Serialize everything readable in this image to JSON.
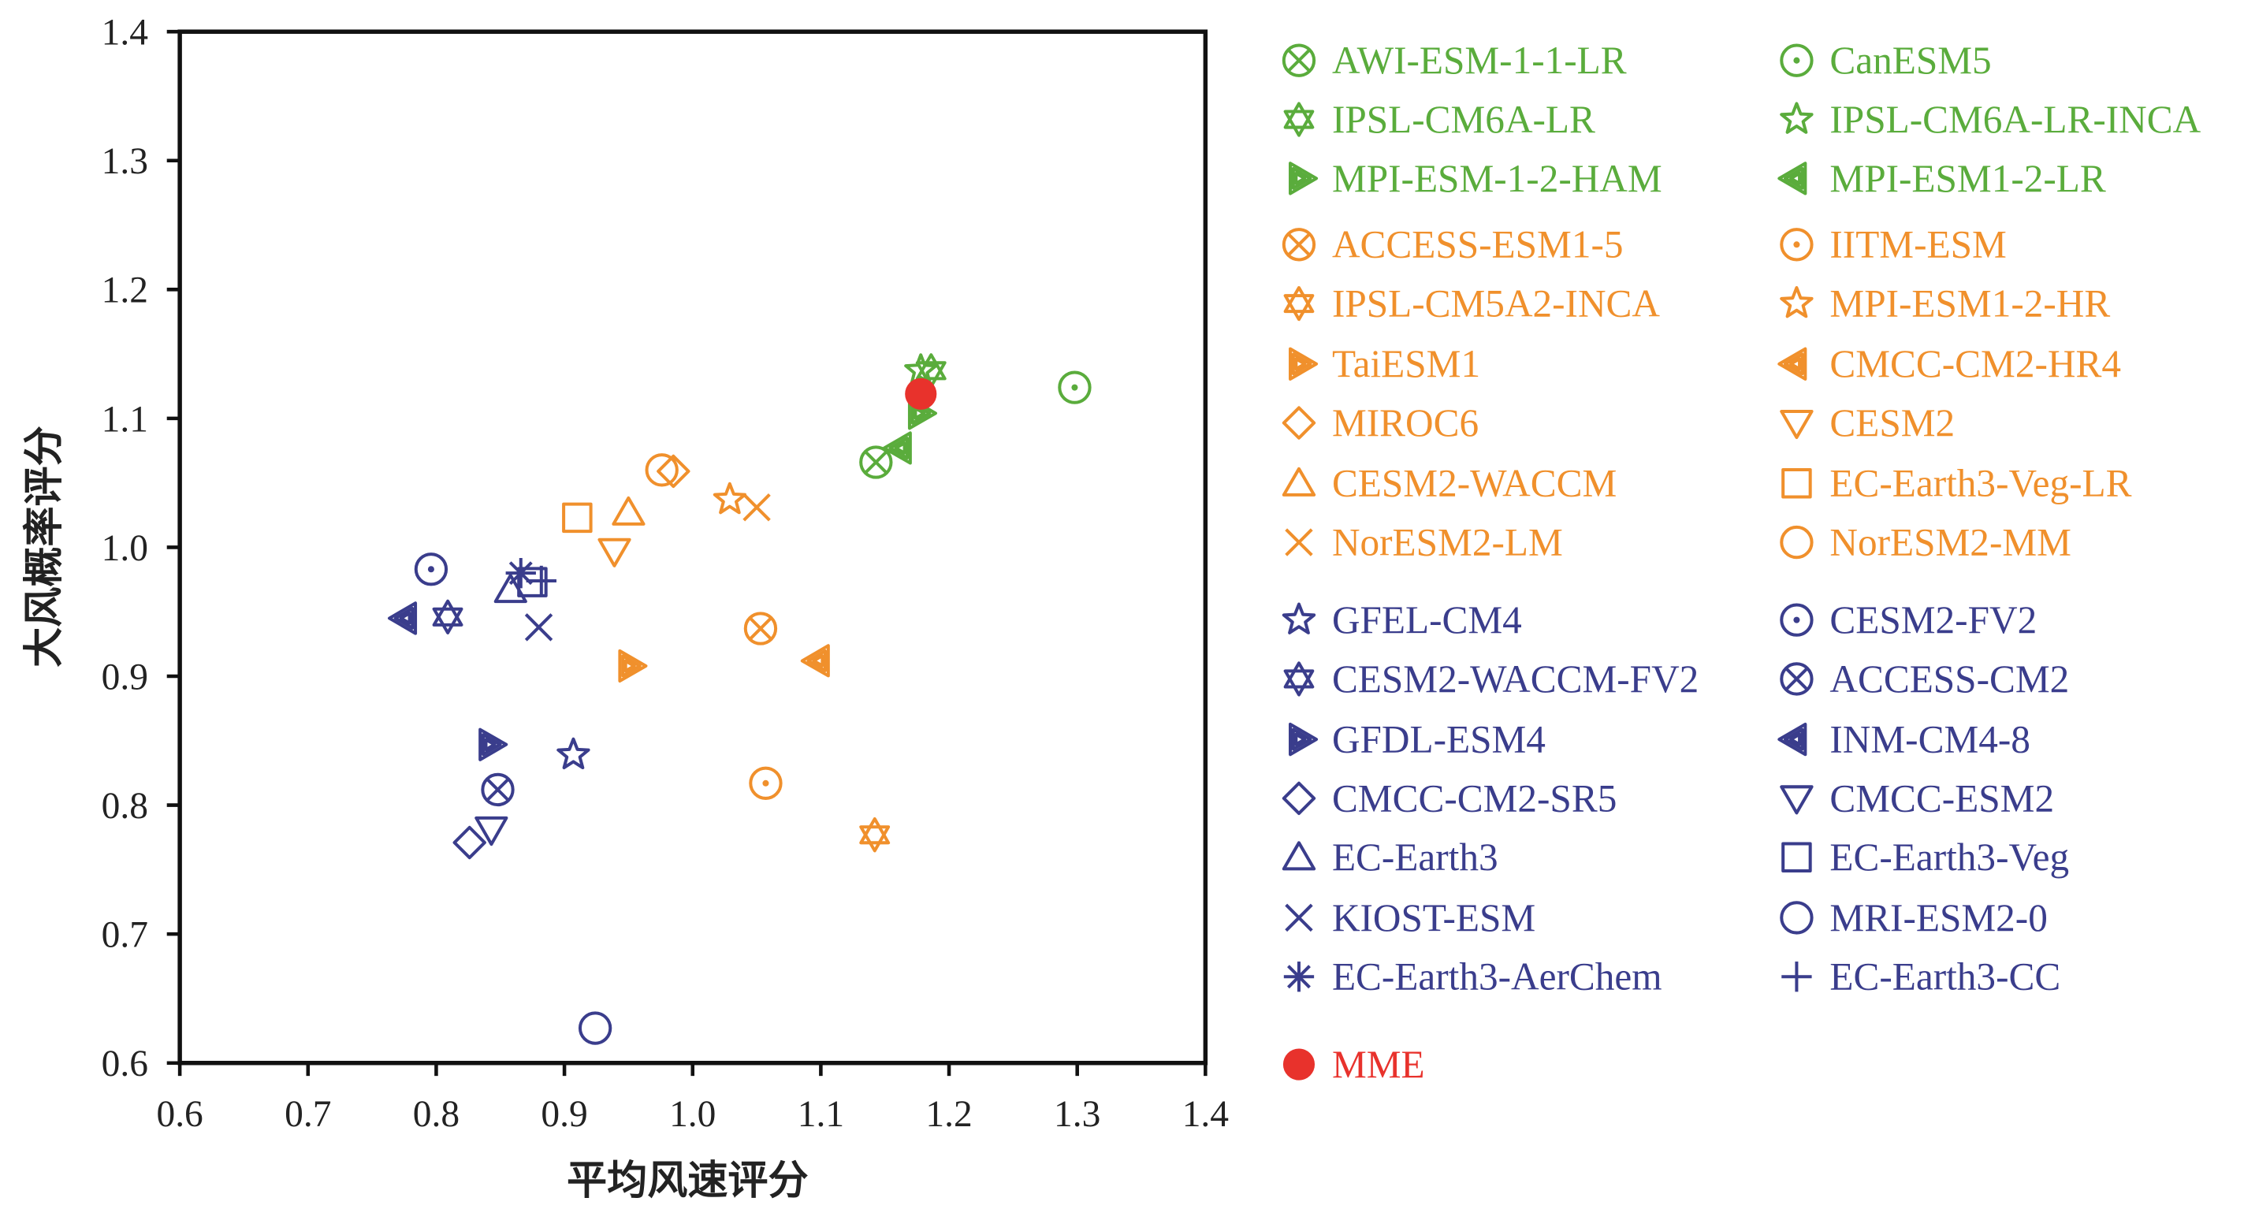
{
  "chart_data": {
    "type": "scatter",
    "xlabel": "平均风速评分",
    "ylabel": "大风概率评分",
    "xlim": [
      0.6,
      1.4
    ],
    "ylim": [
      0.6,
      1.4
    ],
    "xticks": [
      "0.6",
      "0.7",
      "0.8",
      "0.9",
      "1.0",
      "1.1",
      "1.2",
      "1.3",
      "1.4"
    ],
    "yticks": [
      "0.6",
      "0.7",
      "0.8",
      "0.9",
      "1.0",
      "1.1",
      "1.2",
      "1.3",
      "1.4"
    ],
    "grid": false,
    "legend_placement": "right",
    "colors": {
      "green": "#5aac3c",
      "orange": "#f0902c",
      "blue": "#3a3d8c",
      "red": "#e8322c"
    },
    "series": [
      {
        "name": "AWI-ESM-1-1-LR",
        "marker": "otimes",
        "color": "green",
        "x": 1.143,
        "y": 1.066
      },
      {
        "name": "CanESM5",
        "marker": "odot",
        "color": "green",
        "x": 1.298,
        "y": 1.124
      },
      {
        "name": "IPSL-CM6A-LR",
        "marker": "hexagram",
        "color": "green",
        "x": 1.186,
        "y": 1.137
      },
      {
        "name": "IPSL-CM6A-LR-INCA",
        "marker": "star",
        "color": "green",
        "x": 1.178,
        "y": 1.137
      },
      {
        "name": "MPI-ESM-1-2-HAM",
        "marker": "tri-right",
        "color": "green",
        "x": 1.176,
        "y": 1.104
      },
      {
        "name": "MPI-ESM1-2-LR",
        "marker": "tri-left",
        "color": "green",
        "x": 1.163,
        "y": 1.077
      },
      {
        "name": "ACCESS-ESM1-5",
        "marker": "otimes",
        "color": "orange",
        "x": 1.053,
        "y": 0.937
      },
      {
        "name": "IITM-ESM",
        "marker": "odot",
        "color": "orange",
        "x": 1.057,
        "y": 0.817
      },
      {
        "name": "IPSL-CM5A2-INCA",
        "marker": "hexagram",
        "color": "orange",
        "x": 1.142,
        "y": 0.777
      },
      {
        "name": "MPI-ESM1-2-HR",
        "marker": "star",
        "color": "orange",
        "x": 1.029,
        "y": 1.037
      },
      {
        "name": "TaiESM1",
        "marker": "tri-right",
        "color": "orange",
        "x": 0.95,
        "y": 0.908
      },
      {
        "name": "CMCC-CM2-HR4",
        "marker": "tri-left",
        "color": "orange",
        "x": 1.099,
        "y": 0.912
      },
      {
        "name": "MIROC6",
        "marker": "diamond",
        "color": "orange",
        "x": 0.985,
        "y": 1.059
      },
      {
        "name": "CESM2",
        "marker": "tri-down",
        "color": "orange",
        "x": 0.939,
        "y": 0.997
      },
      {
        "name": "CESM2-WACCM",
        "marker": "tri-up",
        "color": "orange",
        "x": 0.95,
        "y": 1.027
      },
      {
        "name": "EC-Earth3-Veg-LR",
        "marker": "square",
        "color": "orange",
        "x": 0.91,
        "y": 1.023
      },
      {
        "name": "NorESM2-LM",
        "marker": "x",
        "color": "orange",
        "x": 1.05,
        "y": 1.031
      },
      {
        "name": "NorESM2-MM",
        "marker": "circle",
        "color": "orange",
        "x": 0.976,
        "y": 1.06
      },
      {
        "name": "GFEL-CM4",
        "marker": "star",
        "color": "blue",
        "x": 0.907,
        "y": 0.839
      },
      {
        "name": "CESM2-FV2",
        "marker": "odot",
        "color": "blue",
        "x": 0.796,
        "y": 0.983
      },
      {
        "name": "CESM2-WACCM-FV2",
        "marker": "hexagram",
        "color": "blue",
        "x": 0.809,
        "y": 0.946
      },
      {
        "name": "ACCESS-CM2",
        "marker": "otimes",
        "color": "blue",
        "x": 0.848,
        "y": 0.812
      },
      {
        "name": "GFDL-ESM4",
        "marker": "tri-right",
        "color": "blue",
        "x": 0.841,
        "y": 0.847
      },
      {
        "name": "INM-CM4-8",
        "marker": "tri-left",
        "color": "blue",
        "x": 0.777,
        "y": 0.945
      },
      {
        "name": "CMCC-CM2-SR5",
        "marker": "diamond",
        "color": "blue",
        "x": 0.826,
        "y": 0.771
      },
      {
        "name": "CMCC-ESM2",
        "marker": "tri-down",
        "color": "blue",
        "x": 0.843,
        "y": 0.781
      },
      {
        "name": "EC-Earth3",
        "marker": "tri-up",
        "color": "blue",
        "x": 0.858,
        "y": 0.967
      },
      {
        "name": "EC-Earth3-Veg",
        "marker": "square",
        "color": "blue",
        "x": 0.875,
        "y": 0.973
      },
      {
        "name": "KIOST-ESM",
        "marker": "x",
        "color": "blue",
        "x": 0.88,
        "y": 0.938
      },
      {
        "name": "MRI-ESM2-0",
        "marker": "circle",
        "color": "blue",
        "x": 0.924,
        "y": 0.627
      },
      {
        "name": "EC-Earth3-AerChem",
        "marker": "asterisk",
        "color": "blue",
        "x": 0.866,
        "y": 0.98
      },
      {
        "name": "EC-Earth3-CC",
        "marker": "plus",
        "color": "blue",
        "x": 0.882,
        "y": 0.974
      },
      {
        "name": "MME",
        "marker": "filled-circle",
        "color": "red",
        "x": 1.178,
        "y": 1.119
      }
    ]
  }
}
